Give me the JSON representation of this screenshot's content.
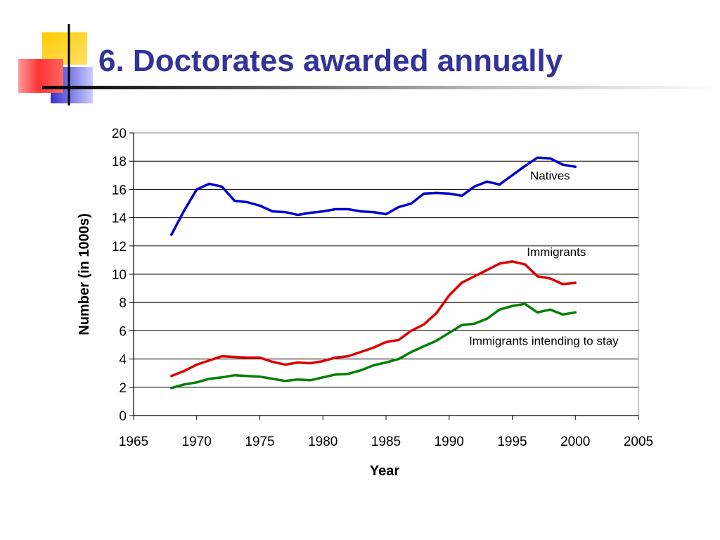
{
  "slide": {
    "title": "6. Doctorates awarded annually"
  },
  "colors": {
    "title": "#333399",
    "natives": "#0000cc",
    "immigrants": "#dd0000",
    "immigrants_staying": "#008000",
    "deco_yellow": "#ffcc00",
    "deco_red": "#ff3333",
    "deco_blue": "#3333cc"
  },
  "chart_data": {
    "type": "line",
    "title": "",
    "xlabel": "Year",
    "ylabel": "Number (in 1000s)",
    "xlim": [
      1965,
      2005
    ],
    "ylim": [
      0,
      20
    ],
    "xticks": [
      "1965",
      "1970",
      "1975",
      "1980",
      "1985",
      "1990",
      "1995",
      "2000",
      "2005"
    ],
    "yticks": [
      "0",
      "2",
      "4",
      "6",
      "8",
      "10",
      "12",
      "14",
      "16",
      "18",
      "20"
    ],
    "grid": "horizontal",
    "legend": "none",
    "x": [
      1968,
      1969,
      1970,
      1971,
      1972,
      1973,
      1974,
      1975,
      1976,
      1977,
      1978,
      1979,
      1980,
      1981,
      1982,
      1983,
      1984,
      1985,
      1986,
      1987,
      1988,
      1989,
      1990,
      1991,
      1992,
      1993,
      1994,
      1995,
      1996,
      1997,
      1998,
      1999,
      2000
    ],
    "series": [
      {
        "name": "Natives",
        "color": "#0000cc",
        "label_anchor": [
          1998,
          16.7
        ],
        "values": [
          12.8,
          14.5,
          16.0,
          16.4,
          16.2,
          15.2,
          15.1,
          14.85,
          14.45,
          14.4,
          14.2,
          14.35,
          14.45,
          14.6,
          14.6,
          14.45,
          14.4,
          14.25,
          14.75,
          15.0,
          15.7,
          15.75,
          15.7,
          15.55,
          16.2,
          16.55,
          16.35,
          17.0,
          17.65,
          18.25,
          18.2,
          17.75,
          17.6
        ]
      },
      {
        "name": "Immigrants",
        "color": "#dd0000",
        "label_anchor": [
          1998.5,
          11.3
        ],
        "values": [
          2.8,
          3.15,
          3.6,
          3.9,
          4.2,
          4.15,
          4.1,
          4.1,
          3.8,
          3.6,
          3.75,
          3.7,
          3.85,
          4.1,
          4.2,
          4.5,
          4.8,
          5.2,
          5.35,
          6.0,
          6.45,
          7.25,
          8.5,
          9.4,
          9.85,
          10.3,
          10.75,
          10.9,
          10.7,
          9.85,
          9.7,
          9.3,
          9.4
        ]
      },
      {
        "name": "Immigrants intending to stay",
        "color": "#008000",
        "label_anchor": [
          1997.5,
          5.0
        ],
        "values": [
          1.95,
          2.2,
          2.35,
          2.6,
          2.7,
          2.85,
          2.8,
          2.75,
          2.6,
          2.45,
          2.55,
          2.5,
          2.7,
          2.9,
          2.95,
          3.2,
          3.55,
          3.75,
          4.0,
          4.5,
          4.9,
          5.3,
          5.85,
          6.4,
          6.5,
          6.85,
          7.5,
          7.75,
          7.9,
          7.3,
          7.5,
          7.15,
          7.3
        ]
      }
    ]
  }
}
